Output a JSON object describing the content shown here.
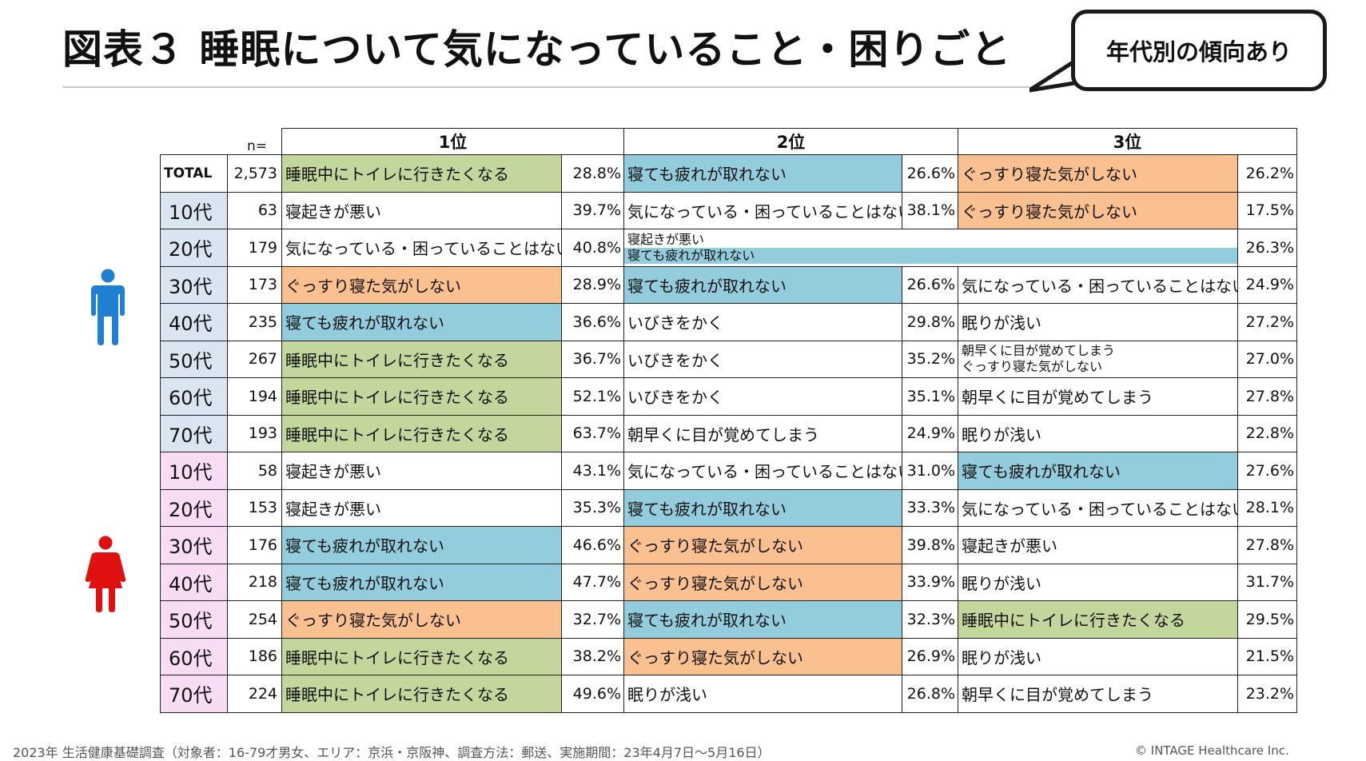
{
  "title": "図表３ 睡眠について気になっていること・困りごと",
  "callout": "年代別の傾向あり",
  "header": {
    "n_label": "n=",
    "rank1": "1位",
    "rank2": "2位",
    "rank3": "3位"
  },
  "rows": [
    {
      "label": "TOTAL",
      "n": "2,573",
      "r1": "睡眠中にトイレに行きたくなる",
      "p1": "28.8%",
      "r2": "寝ても疲れが取れない",
      "p2": "26.6%",
      "r3": "ぐっすり寝た気がしない",
      "p3": "26.2%"
    },
    {
      "label": "10代",
      "n": "63",
      "r1": "寝起きが悪い",
      "p1": "39.7%",
      "r2": "気になっている・困っていることはない",
      "p2": "38.1%",
      "r3": "ぐっすり寝た気がしない",
      "p3": "17.5%"
    },
    {
      "label": "20代",
      "n": "179",
      "r1": "気になっている・困っていることはない",
      "p1": "40.8%",
      "r2a": "寝起きが悪い",
      "r2b": "寝ても疲れが取れない",
      "p3": "26.3%"
    },
    {
      "label": "30代",
      "n": "173",
      "r1": "ぐっすり寝た気がしない",
      "p1": "28.9%",
      "r2": "寝ても疲れが取れない",
      "p2": "26.6%",
      "r3": "気になっている・困っていることはない",
      "p3": "24.9%"
    },
    {
      "label": "40代",
      "n": "235",
      "r1": "寝ても疲れが取れない",
      "p1": "36.6%",
      "r2": "いびきをかく",
      "p2": "29.8%",
      "r3": "眠りが浅い",
      "p3": "27.2%"
    },
    {
      "label": "50代",
      "n": "267",
      "r1": "睡眠中にトイレに行きたくなる",
      "p1": "36.7%",
      "r2": "いびきをかく",
      "p2": "35.2%",
      "r3a": "朝早くに目が覚めてしまう",
      "r3b": "ぐっすり寝た気がしない",
      "p3": "27.0%"
    },
    {
      "label": "60代",
      "n": "194",
      "r1": "睡眠中にトイレに行きたくなる",
      "p1": "52.1%",
      "r2": "いびきをかく",
      "p2": "35.1%",
      "r3": "朝早くに目が覚めてしまう",
      "p3": "27.8%"
    },
    {
      "label": "70代",
      "n": "193",
      "r1": "睡眠中にトイレに行きたくなる",
      "p1": "63.7%",
      "r2": "朝早くに目が覚めてしまう",
      "p2": "24.9%",
      "r3": "眠りが浅い",
      "p3": "22.8%"
    },
    {
      "label": "10代",
      "n": "58",
      "r1": "寝起きが悪い",
      "p1": "43.1%",
      "r2": "気になっている・困っていることはない",
      "p2": "31.0%",
      "r3": "寝ても疲れが取れない",
      "p3": "27.6%"
    },
    {
      "label": "20代",
      "n": "153",
      "r1": "寝起きが悪い",
      "p1": "35.3%",
      "r2": "寝ても疲れが取れない",
      "p2": "33.3%",
      "r3": "気になっている・困っていることはない",
      "p3": "28.1%"
    },
    {
      "label": "30代",
      "n": "176",
      "r1": "寝ても疲れが取れない",
      "p1": "46.6%",
      "r2": "ぐっすり寝た気がしない",
      "p2": "39.8%",
      "r3": "寝起きが悪い",
      "p3": "27.8%"
    },
    {
      "label": "40代",
      "n": "218",
      "r1": "寝ても疲れが取れない",
      "p1": "47.7%",
      "r2": "ぐっすり寝た気がしない",
      "p2": "33.9%",
      "r3": "眠りが浅い",
      "p3": "31.7%"
    },
    {
      "label": "50代",
      "n": "254",
      "r1": "ぐっすり寝た気がしない",
      "p1": "32.7%",
      "r2": "寝ても疲れが取れない",
      "p2": "32.3%",
      "r3": "睡眠中にトイレに行きたくなる",
      "p3": "29.5%"
    },
    {
      "label": "60代",
      "n": "186",
      "r1": "睡眠中にトイレに行きたくなる",
      "p1": "38.2%",
      "r2": "ぐっすり寝た気がしない",
      "p2": "26.9%",
      "r3": "眠りが浅い",
      "p3": "21.5%"
    },
    {
      "label": "70代",
      "n": "224",
      "r1": "睡眠中にトイレに行きたくなる",
      "p1": "49.6%",
      "r2": "眠りが浅い",
      "p2": "26.8%",
      "r3": "朝早くに目が覚めてしまう",
      "p3": "23.2%"
    }
  ],
  "colors": {
    "toilet": "#c3d69b",
    "tired": "#93cddd",
    "unsatisfied": "#fac090",
    "male_label": "#dbe5f1",
    "female_label": "#f8dcf3",
    "male_icon": "#1f7fd1",
    "female_icon": "#e01010"
  },
  "icons": {
    "male": "male-person-icon",
    "female": "female-person-icon"
  },
  "footnote": "2023年 生活健康基礎調査（対象者：16-79才男女、エリア：京浜・京阪神、調査方法：郵送、実施期間：23年4月7日〜5月16日）",
  "copyright": "© INTAGE Healthcare Inc."
}
